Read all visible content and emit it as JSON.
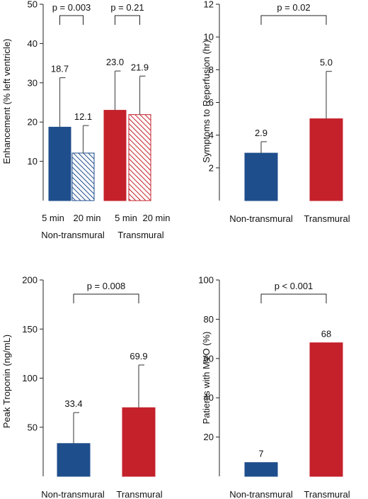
{
  "colors": {
    "non_transmural": "#1f4e8c",
    "transmural": "#c4212b"
  },
  "chart_data": [
    {
      "type": "bar",
      "ylabel": "Enhancement (% left ventricle)",
      "ylim": [
        0,
        50
      ],
      "yticks": [
        10,
        20,
        30,
        40,
        50
      ],
      "categories": [
        "5 min",
        "20 min",
        "5 min",
        "20 min"
      ],
      "groups": [
        "Non-transmural",
        "Transmural"
      ],
      "values": [
        18.7,
        12.1,
        23.0,
        21.9
      ],
      "value_labels": [
        "18.7",
        "12.1",
        "23.0",
        "21.9"
      ],
      "errors": [
        12.6,
        7.0,
        10.0,
        9.8
      ],
      "group_of_bar": [
        0,
        0,
        1,
        1
      ],
      "hatched": [
        false,
        true,
        false,
        true
      ],
      "comparisons": [
        {
          "from": 0,
          "to": 1,
          "label": "p = 0.003"
        },
        {
          "from": 2,
          "to": 3,
          "label": "p = 0.21"
        }
      ]
    },
    {
      "type": "bar",
      "ylabel": "Symptoms to Reperfusion (hr)",
      "ylim": [
        0,
        12
      ],
      "yticks": [
        2,
        4,
        6,
        8,
        10,
        12
      ],
      "categories": [
        "Non-transmural",
        "Transmural"
      ],
      "values": [
        2.9,
        5.0
      ],
      "value_labels": [
        "2.9",
        "5.0"
      ],
      "errors": [
        0.7,
        2.9
      ],
      "group_of_bar": [
        0,
        1
      ],
      "comparisons": [
        {
          "from": 0,
          "to": 1,
          "label": "p = 0.02"
        }
      ]
    },
    {
      "type": "bar",
      "ylabel": "Peak Troponin (ng/mL)",
      "ylim": [
        0,
        200
      ],
      "yticks": [
        50,
        100,
        150,
        200
      ],
      "categories": [
        "Non-transmural",
        "Transmural"
      ],
      "values": [
        33.4,
        69.9
      ],
      "value_labels": [
        "33.4",
        "69.9"
      ],
      "errors": [
        31.5,
        43.5
      ],
      "group_of_bar": [
        0,
        1
      ],
      "comparisons": [
        {
          "from": 0,
          "to": 1,
          "label": "p = 0.008"
        }
      ]
    },
    {
      "type": "bar",
      "ylabel": "Patients with MVO (%)",
      "ylim": [
        0,
        100
      ],
      "yticks": [
        20,
        40,
        60,
        80,
        100
      ],
      "categories": [
        "Non-transmural",
        "Transmural"
      ],
      "values": [
        7,
        68
      ],
      "value_labels": [
        "7",
        "68"
      ],
      "errors": [
        0,
        0
      ],
      "group_of_bar": [
        0,
        1
      ],
      "comparisons": [
        {
          "from": 0,
          "to": 1,
          "label": "p < 0.001"
        }
      ]
    }
  ]
}
